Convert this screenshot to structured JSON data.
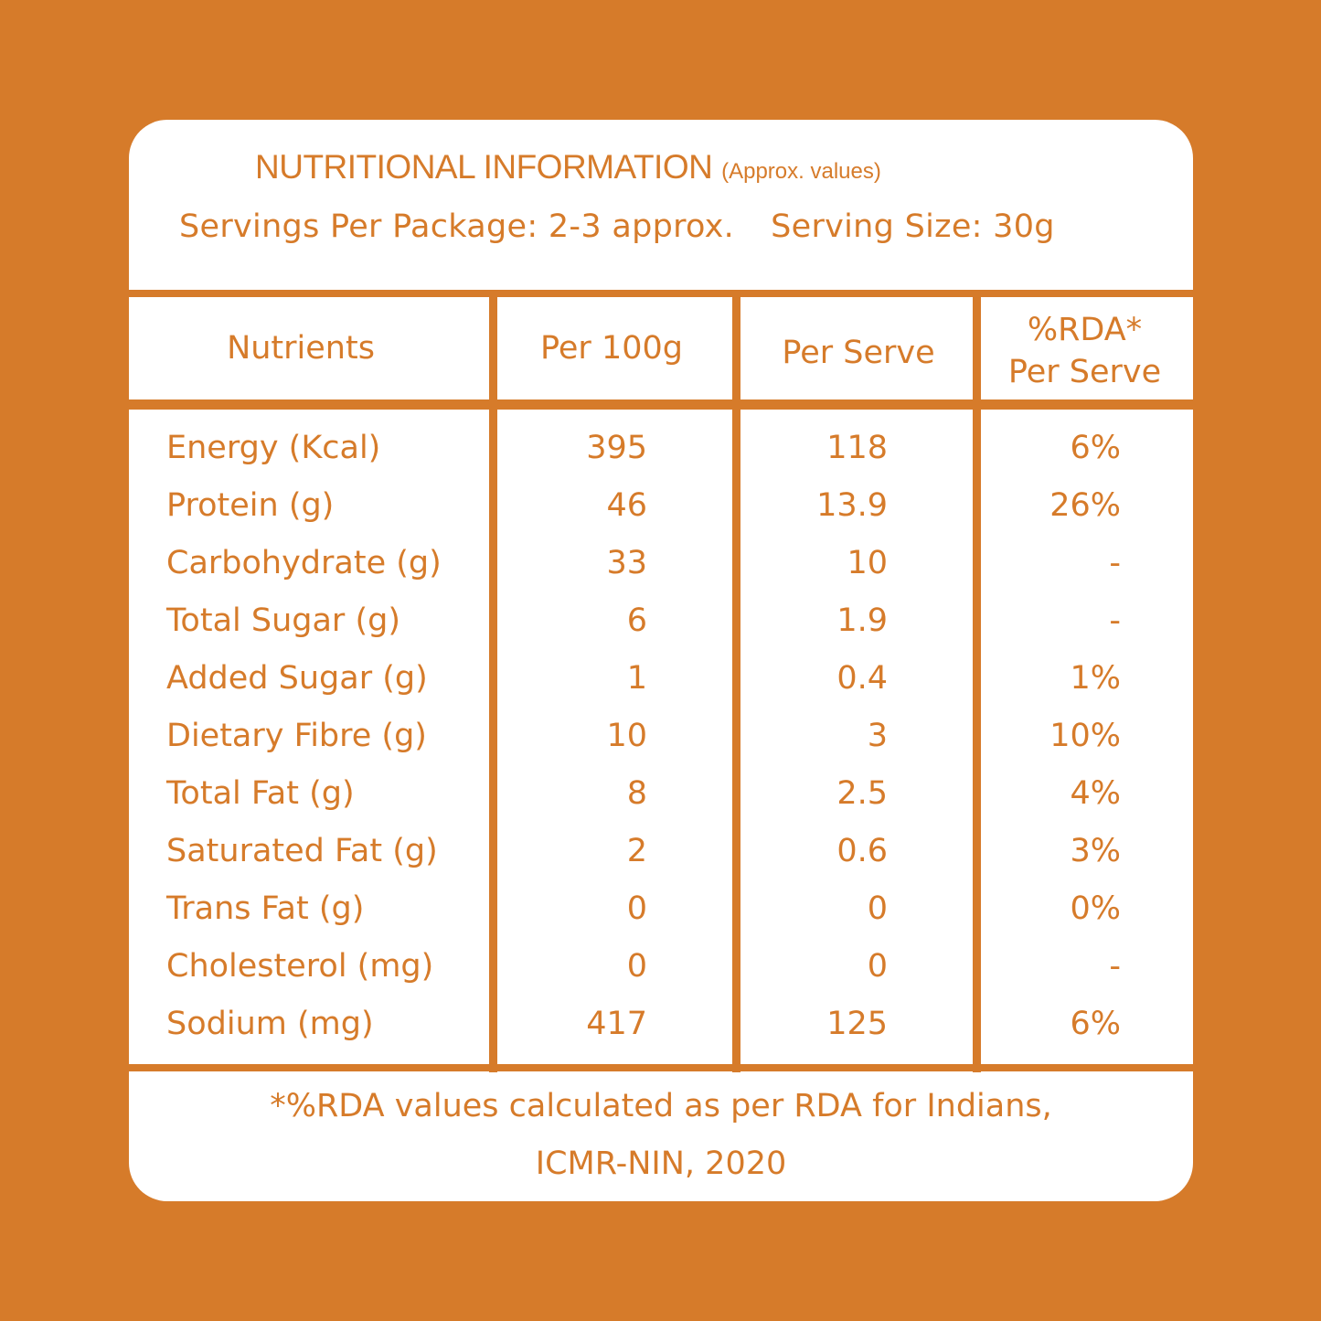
{
  "header": {
    "title": "NUTRITIONAL INFORMATION",
    "title_note": "(Approx. values)",
    "servings_per_package": "Servings Per Package: 2-3 approx.",
    "serving_size": "Serving Size: 30g"
  },
  "table": {
    "columns": [
      "Nutrients",
      "Per 100g",
      "Per Serve",
      "%RDA*",
      "Per Serve"
    ],
    "rows": [
      {
        "nutrient": "Energy (Kcal)",
        "per_100g": "395",
        "per_serve": "118",
        "rda": "6%"
      },
      {
        "nutrient": "Protein (g)",
        "per_100g": "46",
        "per_serve": "13.9",
        "rda": "26%"
      },
      {
        "nutrient": "Carbohydrate (g)",
        "per_100g": "33",
        "per_serve": "10",
        "rda": "-"
      },
      {
        "nutrient": "Total Sugar (g)",
        "per_100g": "6",
        "per_serve": "1.9",
        "rda": "-"
      },
      {
        "nutrient": "Added Sugar (g)",
        "per_100g": "1",
        "per_serve": "0.4",
        "rda": "1%"
      },
      {
        "nutrient": "Dietary Fibre (g)",
        "per_100g": "10",
        "per_serve": "3",
        "rda": "10%"
      },
      {
        "nutrient": "Total Fat (g)",
        "per_100g": "8",
        "per_serve": "2.5",
        "rda": "4%"
      },
      {
        "nutrient": "Saturated Fat (g)",
        "per_100g": "2",
        "per_serve": "0.6",
        "rda": "3%"
      },
      {
        "nutrient": "Trans Fat (g)",
        "per_100g": "0",
        "per_serve": "0",
        "rda": "0%"
      },
      {
        "nutrient": "Cholesterol (mg)",
        "per_100g": "0",
        "per_serve": "0",
        "rda": "-"
      },
      {
        "nutrient": "Sodium (mg)",
        "per_100g": "417",
        "per_serve": "125",
        "rda": "6%"
      }
    ]
  },
  "footnote": {
    "line1": "*%RDA values calculated as per RDA for Indians,",
    "line2": "ICMR-NIN, 2020"
  },
  "colors": {
    "background": "#D67B2A",
    "card": "#FFFFFF",
    "text": "#D67B2A"
  }
}
